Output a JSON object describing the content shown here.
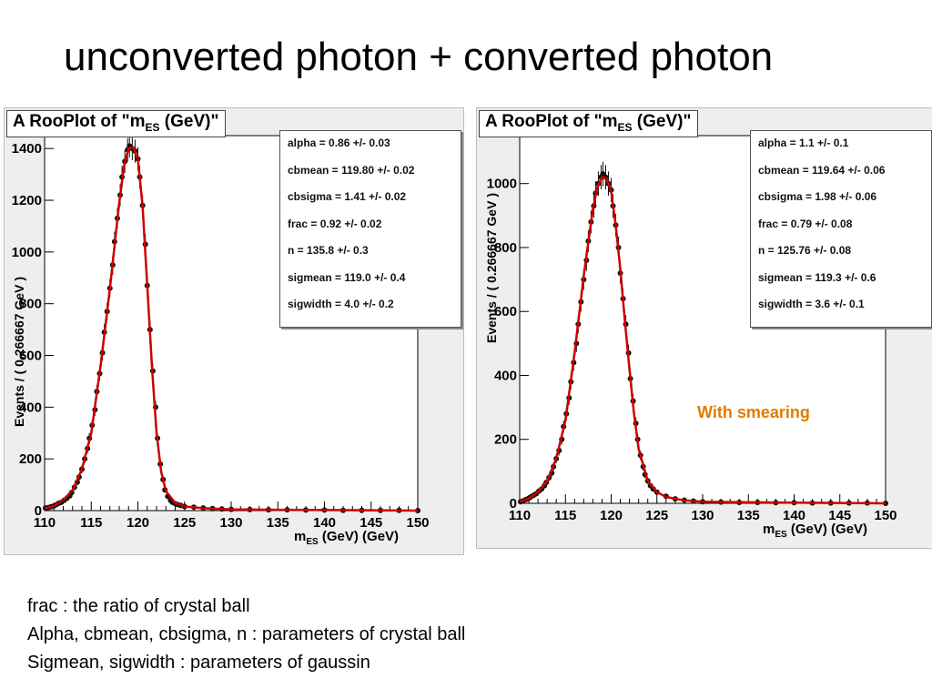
{
  "slide": {
    "title": "unconverted photon + converted photon",
    "notes": [
      "frac :  the ratio of crystal ball",
      "Alpha, cbmean, cbsigma, n : parameters of crystal ball",
      "Sigmean, sigwidth : parameters of gaussin"
    ]
  },
  "colors": {
    "fit_curve": "#cc0000",
    "points": "#111111",
    "annotation": "#e07b00",
    "panel_bg": "#eeeeee"
  },
  "chart_data": [
    {
      "type": "scatter",
      "title_main": "A RooPlot of \"m",
      "title_sub": "ES",
      "title_end": " (GeV)\"",
      "ylabel": "Events / ( 0.266667 GeV )",
      "xlabel_main": "m",
      "xlabel_sub": "ES",
      "xlabel_end": " (GeV) (GeV)",
      "xlim": [
        110,
        150
      ],
      "ylim": [
        0,
        1450
      ],
      "xticks": [
        "110",
        "115",
        "120",
        "125",
        "130",
        "135",
        "140",
        "145",
        "150"
      ],
      "yticks": [
        "0",
        "200",
        "400",
        "600",
        "800",
        "1000",
        "1200",
        "1400"
      ],
      "parameters": [
        "alpha =  0.86 +/- 0.03",
        "cbmean =  119.80 +/- 0.02",
        "cbsigma =  1.41 +/- 0.02",
        "frac =  0.92 +/- 0.02",
        "n =  135.8 +/- 0.3",
        "sigmean =  119.0 +/- 0.4",
        "sigwidth =  4.0 +/- 0.2"
      ],
      "annotation": "",
      "points": [
        [
          110.1,
          10
        ],
        [
          110.4,
          12
        ],
        [
          110.7,
          15
        ],
        [
          111.0,
          18
        ],
        [
          111.2,
          22
        ],
        [
          111.5,
          28
        ],
        [
          111.8,
          32
        ],
        [
          112.1,
          40
        ],
        [
          112.4,
          48
        ],
        [
          112.7,
          57
        ],
        [
          112.9,
          70
        ],
        [
          113.2,
          90
        ],
        [
          113.5,
          110
        ],
        [
          113.7,
          130
        ],
        [
          114.0,
          160
        ],
        [
          114.3,
          200
        ],
        [
          114.6,
          240
        ],
        [
          114.8,
          280
        ],
        [
          115.1,
          330
        ],
        [
          115.4,
          390
        ],
        [
          115.6,
          460
        ],
        [
          115.9,
          530
        ],
        [
          116.2,
          610
        ],
        [
          116.4,
          690
        ],
        [
          116.7,
          770
        ],
        [
          117.0,
          860
        ],
        [
          117.3,
          950
        ],
        [
          117.5,
          1040
        ],
        [
          117.8,
          1130
        ],
        [
          118.1,
          1220
        ],
        [
          118.3,
          1290
        ],
        [
          118.6,
          1350
        ],
        [
          118.9,
          1395
        ],
        [
          119.1,
          1410
        ],
        [
          119.4,
          1400
        ],
        [
          119.7,
          1390
        ],
        [
          120.0,
          1360
        ],
        [
          120.2,
          1290
        ],
        [
          120.5,
          1180
        ],
        [
          120.8,
          1030
        ],
        [
          121.0,
          870
        ],
        [
          121.3,
          700
        ],
        [
          121.6,
          540
        ],
        [
          121.9,
          400
        ],
        [
          122.1,
          280
        ],
        [
          122.4,
          180
        ],
        [
          122.7,
          120
        ],
        [
          122.9,
          80
        ],
        [
          123.2,
          55
        ],
        [
          123.5,
          40
        ],
        [
          123.7,
          32
        ],
        [
          124.0,
          27
        ],
        [
          124.3,
          23
        ],
        [
          124.6,
          20
        ],
        [
          125.0,
          16
        ],
        [
          126.0,
          13
        ],
        [
          127.0,
          10
        ],
        [
          128.0,
          8
        ],
        [
          129.0,
          6
        ],
        [
          130.0,
          5
        ],
        [
          132.0,
          4
        ],
        [
          134.0,
          3
        ],
        [
          136.0,
          3
        ],
        [
          138.0,
          2
        ],
        [
          140.0,
          2
        ],
        [
          142.0,
          1
        ],
        [
          144.0,
          1
        ],
        [
          146.0,
          1
        ],
        [
          148.0,
          1
        ],
        [
          150.0,
          0
        ]
      ],
      "fit": [
        [
          110,
          8
        ],
        [
          111,
          18
        ],
        [
          112,
          40
        ],
        [
          113,
          80
        ],
        [
          114,
          160
        ],
        [
          115,
          300
        ],
        [
          116,
          560
        ],
        [
          117,
          860
        ],
        [
          118,
          1190
        ],
        [
          118.5,
          1330
        ],
        [
          119,
          1400
        ],
        [
          119.5,
          1405
        ],
        [
          120,
          1360
        ],
        [
          120.5,
          1180
        ],
        [
          121,
          870
        ],
        [
          121.5,
          560
        ],
        [
          122,
          300
        ],
        [
          122.5,
          150
        ],
        [
          123,
          75
        ],
        [
          124,
          30
        ],
        [
          125,
          16
        ],
        [
          127,
          9
        ],
        [
          130,
          5
        ],
        [
          135,
          3
        ],
        [
          140,
          2
        ],
        [
          150,
          0
        ]
      ]
    },
    {
      "type": "scatter",
      "title_main": "A RooPlot of \"m",
      "title_sub": "ES",
      "title_end": " (GeV)\"",
      "ylabel": "Events / ( 0.266667 GeV )",
      "xlabel_main": "m",
      "xlabel_sub": "ES",
      "xlabel_end": " (GeV) (GeV)",
      "xlim": [
        110,
        150
      ],
      "ylim": [
        0,
        1150
      ],
      "xticks": [
        "110",
        "115",
        "120",
        "125",
        "130",
        "135",
        "140",
        "145",
        "150"
      ],
      "yticks": [
        "0",
        "200",
        "400",
        "600",
        "800",
        "1000"
      ],
      "parameters": [
        "alpha =  1.1 +/- 0.1",
        "cbmean =  119.64 +/- 0.06",
        "cbsigma =  1.98 +/- 0.06",
        "frac =  0.79 +/- 0.08",
        "n =  125.76 +/- 0.08",
        "sigmean =  119.3 +/- 0.6",
        "sigwidth =  3.6 +/- 0.1"
      ],
      "annotation": "With smearing",
      "points": [
        [
          110.1,
          5
        ],
        [
          110.4,
          8
        ],
        [
          110.7,
          12
        ],
        [
          111.0,
          16
        ],
        [
          111.2,
          20
        ],
        [
          111.5,
          25
        ],
        [
          111.8,
          30
        ],
        [
          112.1,
          38
        ],
        [
          112.4,
          45
        ],
        [
          112.7,
          55
        ],
        [
          112.9,
          65
        ],
        [
          113.2,
          80
        ],
        [
          113.5,
          95
        ],
        [
          113.7,
          115
        ],
        [
          114.0,
          140
        ],
        [
          114.3,
          165
        ],
        [
          114.6,
          200
        ],
        [
          114.8,
          240
        ],
        [
          115.1,
          280
        ],
        [
          115.4,
          330
        ],
        [
          115.6,
          380
        ],
        [
          115.9,
          440
        ],
        [
          116.2,
          500
        ],
        [
          116.4,
          560
        ],
        [
          116.7,
          630
        ],
        [
          117.0,
          700
        ],
        [
          117.3,
          760
        ],
        [
          117.5,
          820
        ],
        [
          117.8,
          880
        ],
        [
          118.1,
          930
        ],
        [
          118.3,
          970
        ],
        [
          118.6,
          1000
        ],
        [
          118.9,
          1020
        ],
        [
          119.1,
          1030
        ],
        [
          119.4,
          1020
        ],
        [
          119.7,
          1000
        ],
        [
          120.0,
          980
        ],
        [
          120.2,
          930
        ],
        [
          120.5,
          870
        ],
        [
          120.8,
          800
        ],
        [
          121.0,
          720
        ],
        [
          121.3,
          640
        ],
        [
          121.6,
          560
        ],
        [
          121.9,
          470
        ],
        [
          122.1,
          390
        ],
        [
          122.4,
          320
        ],
        [
          122.7,
          250
        ],
        [
          122.9,
          200
        ],
        [
          123.2,
          150
        ],
        [
          123.5,
          115
        ],
        [
          123.7,
          90
        ],
        [
          124.0,
          70
        ],
        [
          124.3,
          55
        ],
        [
          124.6,
          45
        ],
        [
          125.0,
          35
        ],
        [
          126.0,
          22
        ],
        [
          127.0,
          14
        ],
        [
          128.0,
          10
        ],
        [
          129.0,
          7
        ],
        [
          130.0,
          5
        ],
        [
          132.0,
          4
        ],
        [
          134.0,
          3
        ],
        [
          136.0,
          3
        ],
        [
          138.0,
          2
        ],
        [
          140.0,
          2
        ],
        [
          142.0,
          1
        ],
        [
          144.0,
          1
        ],
        [
          146.0,
          1
        ],
        [
          148.0,
          1
        ],
        [
          150.0,
          0
        ]
      ],
      "fit": [
        [
          110,
          5
        ],
        [
          111,
          15
        ],
        [
          112,
          35
        ],
        [
          113,
          70
        ],
        [
          114,
          140
        ],
        [
          115,
          260
        ],
        [
          116,
          470
        ],
        [
          117,
          710
        ],
        [
          118,
          920
        ],
        [
          118.5,
          990
        ],
        [
          119,
          1020
        ],
        [
          119.5,
          1015
        ],
        [
          120,
          975
        ],
        [
          120.5,
          870
        ],
        [
          121,
          730
        ],
        [
          121.5,
          570
        ],
        [
          122,
          420
        ],
        [
          122.5,
          280
        ],
        [
          123,
          170
        ],
        [
          124,
          70
        ],
        [
          125,
          35
        ],
        [
          126,
          20
        ],
        [
          128,
          9
        ],
        [
          130,
          5
        ],
        [
          135,
          3
        ],
        [
          140,
          2
        ],
        [
          150,
          0
        ]
      ]
    }
  ]
}
